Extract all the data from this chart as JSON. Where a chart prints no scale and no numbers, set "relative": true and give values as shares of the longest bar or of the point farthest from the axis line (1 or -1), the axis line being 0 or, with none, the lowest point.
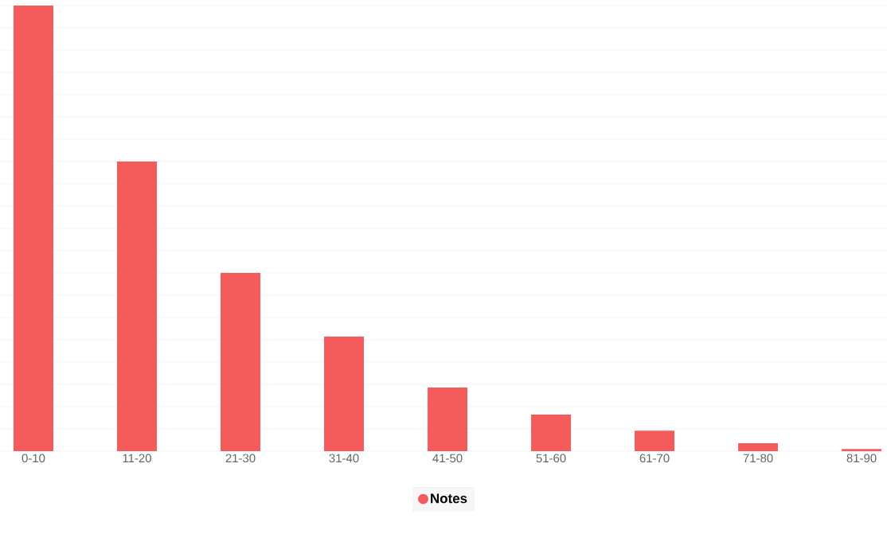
{
  "chart_data": {
    "type": "bar",
    "relative": true,
    "categories": [
      "0-10",
      "11-20",
      "21-30",
      "31-40",
      "41-50",
      "51-60",
      "61-70",
      "71-80",
      "81-90"
    ],
    "series": [
      {
        "name": "Notes",
        "color": "#f45b5b",
        "values": [
          1,
          0.65,
          0.4,
          0.257,
          0.143,
          0.082,
          0.046,
          0.018,
          0.005
        ]
      }
    ],
    "grid": "y",
    "legend": "bottom"
  }
}
